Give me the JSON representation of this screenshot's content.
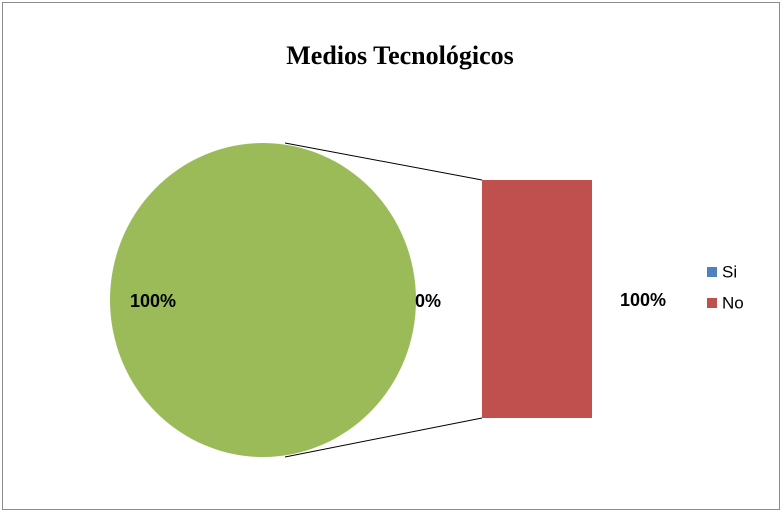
{
  "chart_data": {
    "type": "bar-of-pie",
    "title": "Medios Tecnológicos",
    "categories": [
      "Si",
      "No"
    ],
    "values": [
      0,
      100
    ],
    "value_labels": [
      "0%",
      "100%"
    ],
    "colors": [
      "#4f81bd",
      "#c0504d"
    ],
    "other": {
      "value": 100,
      "label": "100%",
      "color": "#9bbb59"
    }
  }
}
